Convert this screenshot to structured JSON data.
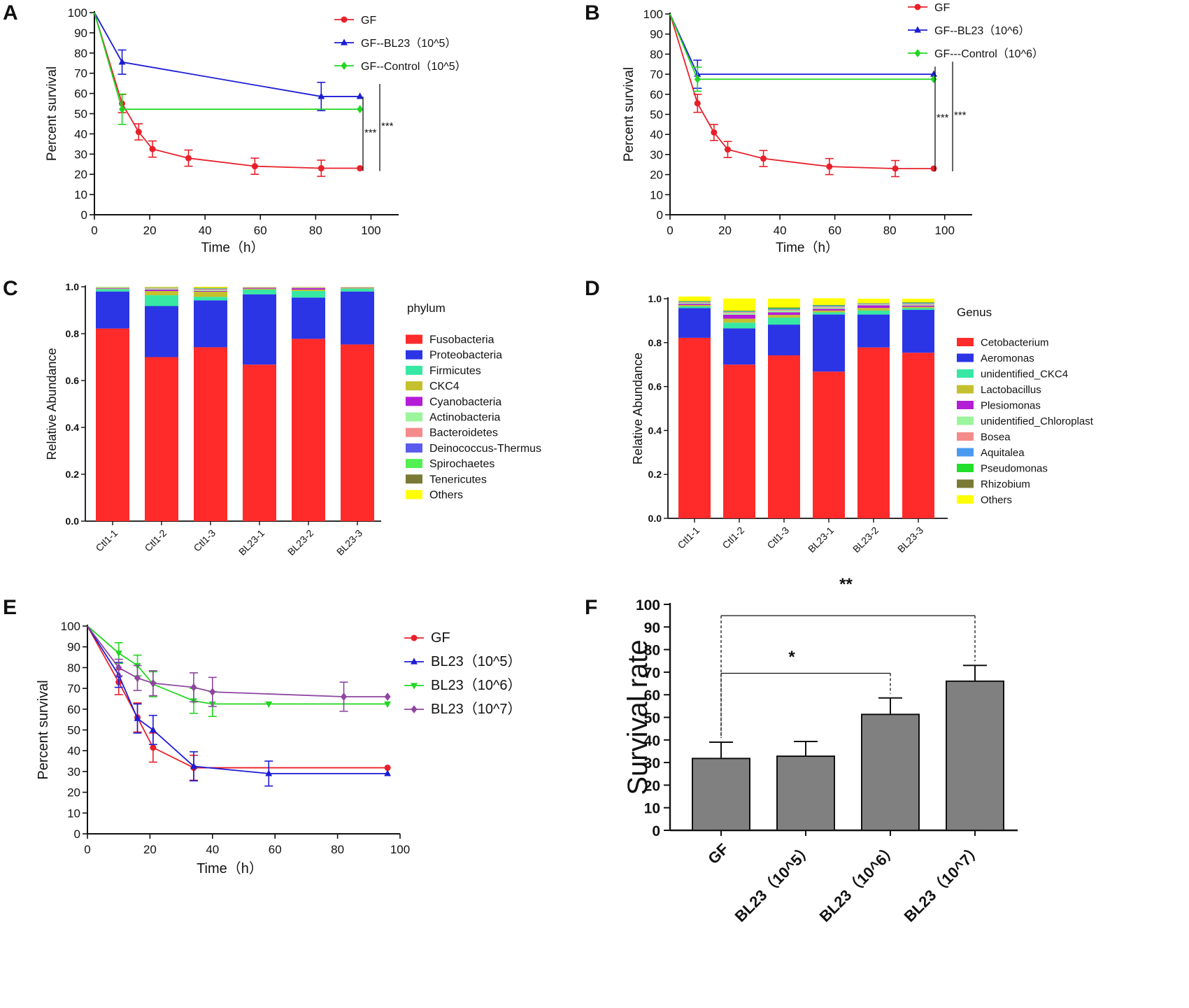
{
  "chart_data": [
    {
      "panel": "A",
      "type": "line",
      "xlabel": "Time（h）",
      "ylabel": "Percent survival",
      "xlim": [
        0,
        110
      ],
      "ylim": [
        0,
        100
      ],
      "xticks": [
        0,
        20,
        40,
        60,
        80,
        100
      ],
      "yticks": [
        0,
        10,
        20,
        30,
        40,
        50,
        60,
        70,
        80,
        90,
        100
      ],
      "legend_position": "top-right",
      "series": [
        {
          "name": "GF",
          "color": "#e8202a",
          "marker": "circle",
          "x": [
            0,
            10,
            16,
            21,
            34,
            58,
            82,
            96
          ],
          "y": [
            100,
            55,
            41,
            32.5,
            28,
            24,
            23,
            23
          ],
          "err": [
            0,
            4.5,
            4,
            4,
            4,
            4,
            4,
            0
          ]
        },
        {
          "name": "GF--BL23（10^5）",
          "color": "#1b1bd6",
          "marker": "triangle",
          "x": [
            0,
            10,
            82,
            96
          ],
          "y": [
            100,
            75.5,
            58.5,
            58.5
          ],
          "err": [
            0,
            6,
            7,
            0
          ]
        },
        {
          "name": "GF--Control（10^5）",
          "color": "#22d622",
          "marker": "diamond",
          "x": [
            0,
            10,
            96
          ],
          "y": [
            100,
            52.2,
            52.2
          ],
          "err": [
            0,
            7.5,
            0
          ]
        }
      ],
      "annotations": [
        "***",
        "***"
      ]
    },
    {
      "panel": "B",
      "type": "line",
      "xlabel": "Time（h）",
      "ylabel": "Percent survival",
      "xlim": [
        0,
        110
      ],
      "ylim": [
        0,
        100
      ],
      "xticks": [
        0,
        20,
        40,
        60,
        80,
        100
      ],
      "yticks": [
        0,
        10,
        20,
        30,
        40,
        50,
        60,
        70,
        80,
        90,
        100
      ],
      "legend_position": "top-right",
      "series": [
        {
          "name": "GF",
          "color": "#e8202a",
          "marker": "circle",
          "x": [
            0,
            10,
            16,
            21,
            34,
            58,
            82,
            96
          ],
          "y": [
            100,
            55.5,
            41,
            32.5,
            28,
            24,
            23,
            23
          ],
          "err": [
            0,
            4.5,
            4,
            4,
            4,
            4,
            4,
            0
          ]
        },
        {
          "name": "GF--BL23（10^6）",
          "color": "#1b1bd6",
          "marker": "triangle",
          "x": [
            0,
            10,
            96
          ],
          "y": [
            100,
            70,
            70
          ],
          "err": [
            0,
            7,
            0
          ]
        },
        {
          "name": "GF---Control（10^6）",
          "color": "#22d622",
          "marker": "diamond",
          "x": [
            0,
            10,
            96
          ],
          "y": [
            100,
            67.5,
            67.5
          ],
          "err": [
            0,
            6,
            0
          ]
        }
      ],
      "annotations": [
        "***",
        "***"
      ]
    },
    {
      "panel": "C",
      "type": "bar",
      "stacked": true,
      "ylabel": "Relative Abundance",
      "ylim": [
        0,
        1.0
      ],
      "yticks": [
        "0.0",
        "0.2",
        "0.4",
        "0.6",
        "0.8",
        "1.0"
      ],
      "legend_title": "phylum",
      "categories": [
        "Ctl1-1",
        "Ctl1-2",
        "Ctl1-3",
        "BL23-1",
        "BL23-2",
        "BL23-3"
      ],
      "series": [
        {
          "name": "Fusobacteria",
          "color": "#ff2a2a",
          "values": [
            0.822,
            0.7,
            0.742,
            0.668,
            0.778,
            0.754
          ]
        },
        {
          "name": "Proteobacteria",
          "color": "#2b35e6",
          "values": [
            0.158,
            0.218,
            0.2,
            0.3,
            0.176,
            0.226
          ]
        },
        {
          "name": "Firmicutes",
          "color": "#36e8a4",
          "values": [
            0.01,
            0.046,
            0.015,
            0.02,
            0.028,
            0.012
          ]
        },
        {
          "name": "CKC4",
          "color": "#c4c02e",
          "values": [
            0.002,
            0.018,
            0.022,
            0.004,
            0.006,
            0.002
          ]
        },
        {
          "name": "Cyanobacteria",
          "color": "#b41cd6",
          "values": [
            0.002,
            0.006,
            0.003,
            0.004,
            0.006,
            0.002
          ]
        },
        {
          "name": "Actinobacteria",
          "color": "#9cf59c",
          "values": [
            0.002,
            0.004,
            0.004,
            0.002,
            0.002,
            0.002
          ]
        },
        {
          "name": "Bacteroidetes",
          "color": "#f58a8a",
          "values": [
            0.001,
            0.003,
            0.004,
            0.001,
            0.002,
            0.001
          ]
        },
        {
          "name": "Deinococcus-Thermus",
          "color": "#5a5aee",
          "values": [
            0.001,
            0.001,
            0.002,
            0.0,
            0.001,
            0.0
          ]
        },
        {
          "name": "Spirochaetes",
          "color": "#52f052",
          "values": [
            0.001,
            0.001,
            0.002,
            0.0,
            0.0,
            0.0
          ]
        },
        {
          "name": "Tenericutes",
          "color": "#7a7a36",
          "values": [
            0.0,
            0.001,
            0.002,
            0.0,
            0.0,
            0.0
          ]
        },
        {
          "name": "Others",
          "color": "#ffff00",
          "values": [
            0.001,
            0.002,
            0.004,
            0.001,
            0.001,
            0.001
          ]
        }
      ]
    },
    {
      "panel": "D",
      "type": "bar",
      "stacked": true,
      "ylabel": "Relative Abundance",
      "ylim": [
        0,
        1.0
      ],
      "yticks": [
        "0.0",
        "0.2",
        "0.4",
        "0.6",
        "0.8",
        "1.0"
      ],
      "legend_title": "Genus",
      "categories": [
        "Ctl1-1",
        "Ctl1-2",
        "Ctl1-3",
        "BL23-1",
        "BL23-2",
        "BL23-3"
      ],
      "series": [
        {
          "name": "Cetobacterium",
          "color": "#ff2a2a",
          "values": [
            0.822,
            0.7,
            0.742,
            0.668,
            0.778,
            0.754
          ]
        },
        {
          "name": "Aeromonas",
          "color": "#2b35e6",
          "values": [
            0.135,
            0.165,
            0.14,
            0.26,
            0.15,
            0.195
          ]
        },
        {
          "name": "unidentified_CKC4",
          "color": "#36e8a4",
          "values": [
            0.008,
            0.026,
            0.032,
            0.01,
            0.018,
            0.008
          ]
        },
        {
          "name": "Lactobacillus",
          "color": "#c4c02e",
          "values": [
            0.006,
            0.018,
            0.012,
            0.008,
            0.012,
            0.006
          ]
        },
        {
          "name": "Plesiomonas",
          "color": "#b41cd6",
          "values": [
            0.006,
            0.018,
            0.012,
            0.008,
            0.012,
            0.006
          ]
        },
        {
          "name": "unidentified_Chloroplast",
          "color": "#9cf59c",
          "values": [
            0.004,
            0.008,
            0.008,
            0.006,
            0.004,
            0.004
          ]
        },
        {
          "name": "Bosea",
          "color": "#f58a8a",
          "values": [
            0.003,
            0.004,
            0.004,
            0.004,
            0.002,
            0.004
          ]
        },
        {
          "name": "Aquitalea",
          "color": "#4a9af0",
          "values": [
            0.002,
            0.003,
            0.004,
            0.004,
            0.002,
            0.003
          ]
        },
        {
          "name": "Pseudomonas",
          "color": "#22e02a",
          "values": [
            0.002,
            0.002,
            0.003,
            0.002,
            0.001,
            0.002
          ]
        },
        {
          "name": "Rhizobium",
          "color": "#7a7a36",
          "values": [
            0.002,
            0.002,
            0.003,
            0.002,
            0.001,
            0.002
          ]
        },
        {
          "name": "Others",
          "color": "#ffff00",
          "values": [
            0.02,
            0.055,
            0.04,
            0.03,
            0.02,
            0.016
          ]
        }
      ]
    },
    {
      "panel": "E",
      "type": "line",
      "xlabel": "Time（h）",
      "ylabel": "Percent survival",
      "xlim": [
        0,
        100
      ],
      "ylim": [
        0,
        100
      ],
      "xticks": [
        0,
        20,
        40,
        60,
        80,
        100
      ],
      "yticks": [
        0,
        10,
        20,
        30,
        40,
        50,
        60,
        70,
        80,
        90,
        100
      ],
      "legend_position": "top-right",
      "series": [
        {
          "name": "GF",
          "color": "#e8202a",
          "marker": "circle",
          "x": [
            0,
            10,
            16,
            21,
            34,
            96
          ],
          "y": [
            100,
            73,
            56,
            41.5,
            31.8,
            31.8
          ],
          "err": [
            0,
            6,
            7,
            7,
            6,
            0
          ]
        },
        {
          "name": "BL23（10^5）",
          "color": "#1b1bd6",
          "marker": "triangle",
          "x": [
            0,
            10,
            16,
            21,
            34,
            58,
            96
          ],
          "y": [
            100,
            76.5,
            55.5,
            50,
            32.5,
            29,
            29
          ],
          "err": [
            0,
            6,
            7,
            7,
            7,
            6,
            0
          ]
        },
        {
          "name": "BL23（10^6）",
          "color": "#22d622",
          "marker": "triangle-down",
          "x": [
            0,
            10,
            16,
            21,
            34,
            40,
            58,
            96
          ],
          "y": [
            100,
            87,
            81,
            72,
            64,
            62.5,
            62.5,
            62.5
          ],
          "err": [
            0,
            5,
            5,
            6,
            6,
            6,
            0,
            0
          ]
        },
        {
          "name": "BL23（10^7）",
          "color": "#8e46a0",
          "marker": "diamond",
          "x": [
            0,
            10,
            16,
            21,
            34,
            40,
            82,
            96
          ],
          "y": [
            100,
            80,
            75,
            72.5,
            70.5,
            68.3,
            66,
            66
          ],
          "err": [
            0,
            4,
            6,
            6,
            7,
            7,
            7,
            0
          ]
        }
      ]
    },
    {
      "panel": "F",
      "type": "bar",
      "ylabel": "Survival rate",
      "ylim": [
        0,
        100
      ],
      "yticks": [
        0,
        10,
        20,
        30,
        40,
        50,
        60,
        70,
        80,
        90,
        100
      ],
      "categories": [
        "GF",
        "BL23（10^5）",
        "BL23（10^6）",
        "BL23（10^7）"
      ],
      "values": [
        31.8,
        32.8,
        51.3,
        66
      ],
      "err": [
        7.2,
        6.5,
        7.3,
        7
      ],
      "bar_color": "#808080",
      "annotations": [
        {
          "label": "*",
          "from": "GF",
          "to": "BL23（10^6）"
        },
        {
          "label": "**",
          "from": "GF",
          "to": "BL23（10^7）"
        }
      ]
    }
  ]
}
